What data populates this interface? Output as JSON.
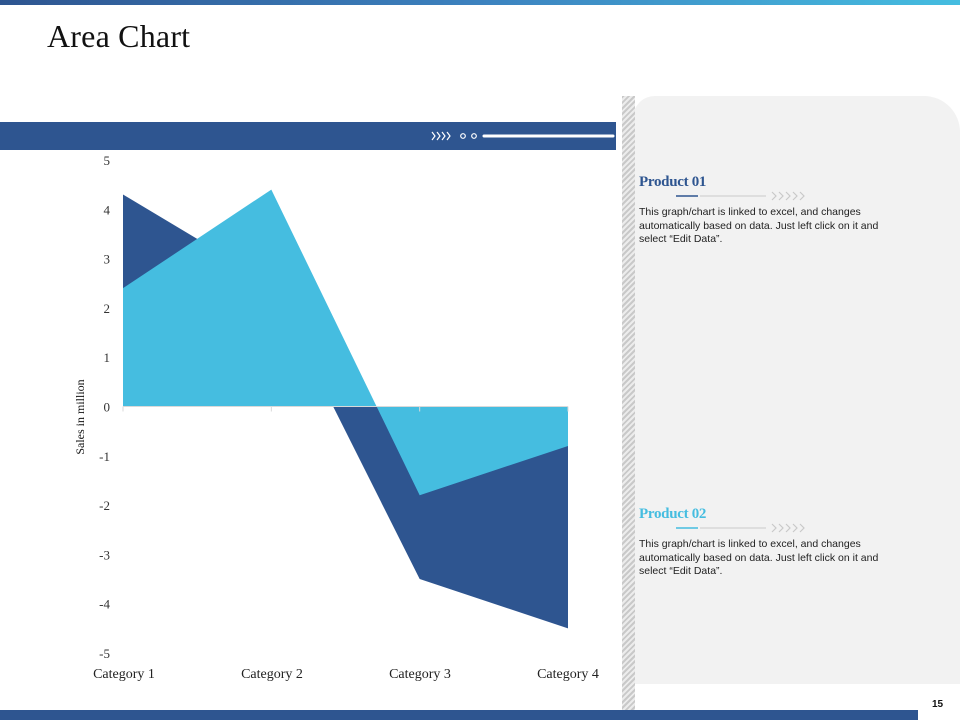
{
  "title": "Area Chart",
  "page_number": "15",
  "products": [
    {
      "title": "Product 01",
      "text": "This graph/chart is linked to excel, and changes automatically based on data. Just left click on it and select “Edit Data”."
    },
    {
      "title": "Product 02",
      "text": "This graph/chart is linked to excel, and changes automatically based on data. Just left click on it and select “Edit Data”."
    }
  ],
  "colors": {
    "dark": "#2e5590",
    "light": "#45bde0",
    "panel": "#f2f2f2"
  },
  "chart_data": {
    "type": "area",
    "categories": [
      "Category 1",
      "Category 2",
      "Category 3",
      "Category 4"
    ],
    "series": [
      {
        "name": "Product 01",
        "values": [
          4.3,
          2.5,
          -3.5,
          -4.5
        ],
        "color": "#2e5590"
      },
      {
        "name": "Product 02",
        "values": [
          2.4,
          4.4,
          -1.8,
          -0.8
        ],
        "color": "#45bde0"
      }
    ],
    "ylabel": "Sales in million",
    "xlabel": "",
    "ylim": [
      -5,
      5
    ],
    "yticks": [
      5,
      4,
      3,
      2,
      1,
      0,
      -1,
      -2,
      -3,
      -4,
      -5
    ],
    "grid": false,
    "legend": "none"
  }
}
